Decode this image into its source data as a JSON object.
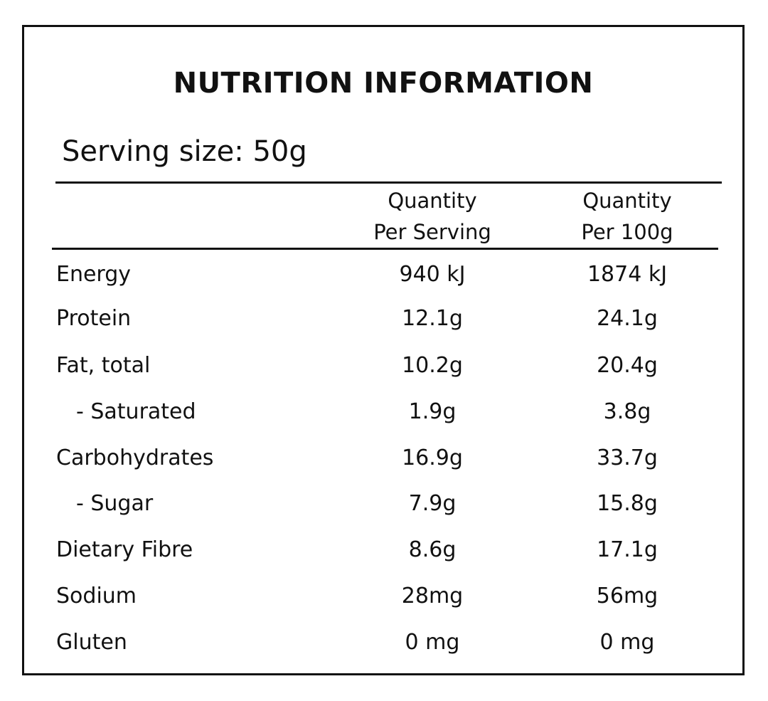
{
  "panel": {
    "title": "NUTRITION INFORMATION",
    "serving_size": "Serving size: 50g"
  },
  "table": {
    "headers": {
      "per_serving": [
        "Quantity",
        "Per Serving"
      ],
      "per_100g": [
        "Quantity",
        "Per 100g"
      ]
    },
    "rows": [
      {
        "label": "Energy",
        "per_serving": "940 kJ",
        "per_100g": "1874 kJ"
      },
      {
        "label": "Protein",
        "per_serving": "12.1g",
        "per_100g": "24.1g"
      },
      {
        "label": "Fat, total",
        "per_serving": "10.2g",
        "per_100g": "20.4g"
      },
      {
        "label": "- Saturated",
        "per_serving": "1.9g",
        "per_100g": "3.8g"
      },
      {
        "label": "Carbohydrates",
        "per_serving": "16.9g",
        "per_100g": "33.7g"
      },
      {
        "label": "- Sugar",
        "per_serving": "7.9g",
        "per_100g": "15.8g"
      },
      {
        "label": "Dietary Fibre",
        "per_serving": "8.6g",
        "per_100g": "17.1g"
      },
      {
        "label": "Sodium",
        "per_serving": "28mg",
        "per_100g": "56mg"
      },
      {
        "label": "Gluten",
        "per_serving": "0 mg",
        "per_100g": "0 mg"
      }
    ]
  },
  "colors": {
    "text": "#111111",
    "border": "#111111",
    "background": "#ffffff"
  }
}
